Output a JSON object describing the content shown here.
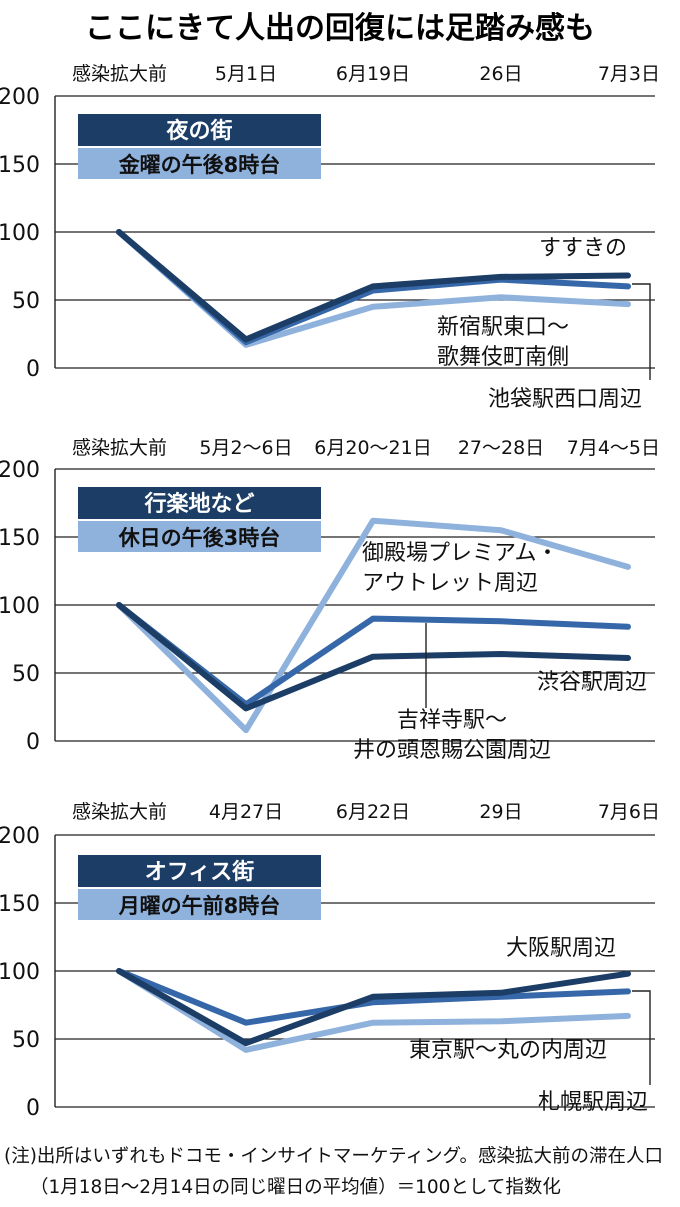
{
  "title": "ここにきて人出の回復には足踏み感も",
  "colors": {
    "dark": "#1b3d66",
    "mid": "#3667a8",
    "light": "#8fb2dd"
  },
  "note": {
    "line1": "(注)出所はいずれもドコモ・インサイトマーケティング。感染拡大前の滞在人口",
    "line2": "（1月18日〜2月14日の同じ曜日の平均値）＝100として指数化"
  },
  "chart_data": [
    {
      "type": "line",
      "box_title": "夜の街",
      "box_subtitle": "金曜の午後8時台",
      "categories": [
        "感染拡大前",
        "5月1日",
        "6月19日",
        "26日",
        "7月3日"
      ],
      "ylim": [
        0,
        200
      ],
      "yticks": [
        0,
        50,
        100,
        150,
        200
      ],
      "grid": true,
      "series": [
        {
          "name": "すすきの",
          "color": "dark",
          "values": [
            100,
            21,
            60,
            67,
            68
          ]
        },
        {
          "name": "新宿駅東口〜\n歌舞伎町南側",
          "color": "light",
          "values": [
            100,
            17,
            45,
            52,
            47
          ]
        },
        {
          "name": "池袋駅西口周辺",
          "color": "mid",
          "values": [
            100,
            19,
            57,
            65,
            60
          ]
        }
      ]
    },
    {
      "type": "line",
      "box_title": "行楽地など",
      "box_subtitle": "休日の午後3時台",
      "categories": [
        "感染拡大前",
        "5月2〜6日",
        "6月20〜21日",
        "27〜28日",
        "7月4〜5日"
      ],
      "ylim": [
        0,
        200
      ],
      "yticks": [
        0,
        50,
        100,
        150,
        200
      ],
      "grid": true,
      "series": [
        {
          "name": "御殿場プレミアム・\nアウトレット周辺",
          "color": "light",
          "values": [
            100,
            8,
            162,
            155,
            128
          ]
        },
        {
          "name": "渋谷駅周辺",
          "color": "dark",
          "values": [
            100,
            24,
            62,
            64,
            61
          ]
        },
        {
          "name": "吉祥寺駅〜\n井の頭恩賜公園周辺",
          "color": "mid",
          "values": [
            100,
            27,
            90,
            88,
            84
          ]
        }
      ]
    },
    {
      "type": "line",
      "box_title": "オフィス街",
      "box_subtitle": "月曜の午前8時台",
      "categories": [
        "感染拡大前",
        "4月27日",
        "6月22日",
        "29日",
        "7月6日"
      ],
      "ylim": [
        0,
        200
      ],
      "yticks": [
        0,
        50,
        100,
        150,
        200
      ],
      "grid": true,
      "series": [
        {
          "name": "大阪駅周辺",
          "color": "dark",
          "values": [
            100,
            47,
            81,
            84,
            98
          ]
        },
        {
          "name": "東京駅〜丸の内周辺",
          "color": "light",
          "values": [
            100,
            42,
            62,
            63,
            67
          ]
        },
        {
          "name": "札幌駅周辺",
          "color": "mid",
          "values": [
            100,
            62,
            77,
            81,
            85
          ]
        }
      ]
    }
  ]
}
